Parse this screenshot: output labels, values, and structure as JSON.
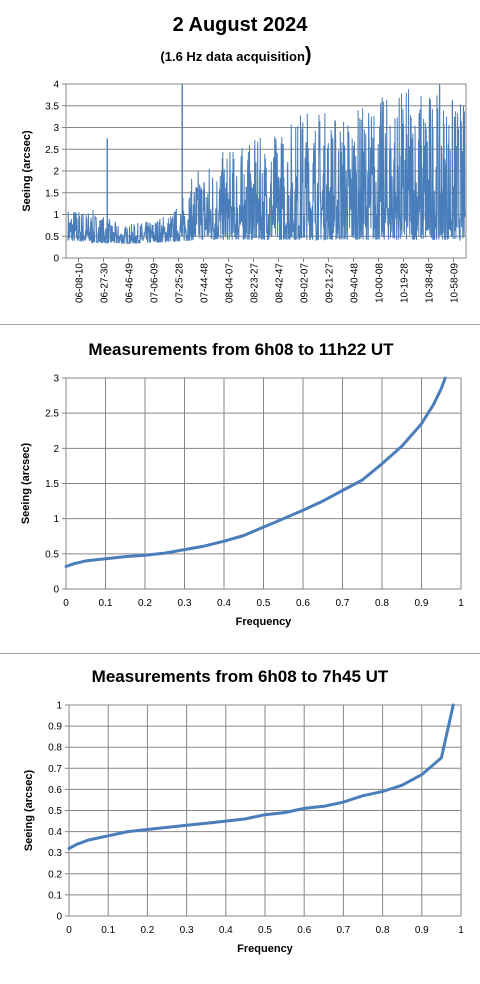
{
  "chart_data": [
    {
      "type": "line",
      "title": "2 August 2024",
      "subtitle": "(1.6 Hz data acquisition",
      "subtitle_close": ")",
      "xlabel": "",
      "ylabel": "Seeing (arcsec)",
      "ylim": [
        0,
        4
      ],
      "yticks": [
        "0",
        "0.5",
        "1",
        "1.5",
        "2",
        "2.5",
        "3",
        "3.5",
        "4"
      ],
      "categories": [
        "06-08-10",
        "06-27-30",
        "06-46-49",
        "07-06-09",
        "07-25-28",
        "07-44-48",
        "08-04-07",
        "08-23-27",
        "08-42-47",
        "09-02-07",
        "09-21-27",
        "09-40-48",
        "10-00-08",
        "10-19-28",
        "10-38-48",
        "10-58-09"
      ],
      "grid": true,
      "legend": "none",
      "color": "#4a7ebb",
      "envelope": {
        "x": [
          "06-08-10",
          "06-27-30",
          "06-46-49",
          "07-06-09",
          "07-25-28",
          "07-44-48",
          "08-04-07",
          "08-23-27",
          "08-42-47",
          "09-02-07",
          "09-21-27",
          "09-40-48",
          "10-00-08",
          "10-19-28",
          "10-38-48",
          "10-58-09"
        ],
        "lower": [
          0.4,
          0.35,
          0.33,
          0.35,
          0.38,
          0.42,
          0.42,
          0.42,
          0.42,
          0.42,
          0.42,
          0.42,
          0.42,
          0.42,
          0.42,
          0.42
        ],
        "upper": [
          1.2,
          1.1,
          0.75,
          0.85,
          1.1,
          2.2,
          2.5,
          2.7,
          3.0,
          3.6,
          3.4,
          3.5,
          3.8,
          4.0,
          4.0,
          3.6
        ]
      },
      "spikes": [
        {
          "x": "06-27-30",
          "y": 2.75
        },
        {
          "x": "07-25-28",
          "y": 4.0
        }
      ]
    },
    {
      "type": "line",
      "title": "Measurements from 6h08 to 11h22 UT",
      "xlabel": "Frequency",
      "ylabel": "Seeing (arcsec)",
      "xlim": [
        0,
        1
      ],
      "ylim": [
        0,
        3
      ],
      "xticks": [
        "0",
        "0.1",
        "0.2",
        "0.3",
        "0.4",
        "0.5",
        "0.6",
        "0.7",
        "0.8",
        "0.9",
        "1"
      ],
      "yticks": [
        "0",
        "0.5",
        "1",
        "1.5",
        "2",
        "2.5",
        "3"
      ],
      "grid": true,
      "legend": "none",
      "color": "#4a7ebb",
      "x": [
        0,
        0.02,
        0.05,
        0.1,
        0.15,
        0.2,
        0.25,
        0.3,
        0.35,
        0.4,
        0.45,
        0.5,
        0.55,
        0.6,
        0.65,
        0.7,
        0.75,
        0.8,
        0.85,
        0.9,
        0.93,
        0.95,
        0.96
      ],
      "y": [
        0.32,
        0.36,
        0.4,
        0.43,
        0.46,
        0.48,
        0.51,
        0.56,
        0.61,
        0.68,
        0.76,
        0.88,
        1.0,
        1.12,
        1.25,
        1.4,
        1.55,
        1.78,
        2.03,
        2.35,
        2.62,
        2.85,
        3.0
      ]
    },
    {
      "type": "line",
      "title": "Measurements from 6h08 to 7h45 UT",
      "xlabel": "Frequency",
      "ylabel": "Seeing (arcsec)",
      "xlim": [
        0,
        1
      ],
      "ylim": [
        0,
        1
      ],
      "xticks": [
        "0",
        "0.1",
        "0.2",
        "0.3",
        "0.4",
        "0.5",
        "0.6",
        "0.7",
        "0.8",
        "0.9",
        "1"
      ],
      "yticks": [
        "0",
        "0.1",
        "0.2",
        "0.3",
        "0.4",
        "0.5",
        "0.6",
        "0.7",
        "0.8",
        "0.9",
        "1"
      ],
      "grid": true,
      "legend": "none",
      "color": "#4a7ebb",
      "x": [
        0,
        0.02,
        0.05,
        0.1,
        0.15,
        0.2,
        0.25,
        0.3,
        0.35,
        0.4,
        0.45,
        0.5,
        0.55,
        0.6,
        0.65,
        0.7,
        0.75,
        0.8,
        0.85,
        0.9,
        0.95,
        0.98
      ],
      "y": [
        0.32,
        0.34,
        0.36,
        0.38,
        0.4,
        0.41,
        0.42,
        0.43,
        0.44,
        0.45,
        0.46,
        0.48,
        0.49,
        0.51,
        0.52,
        0.54,
        0.57,
        0.59,
        0.62,
        0.67,
        0.75,
        1.0
      ]
    }
  ]
}
